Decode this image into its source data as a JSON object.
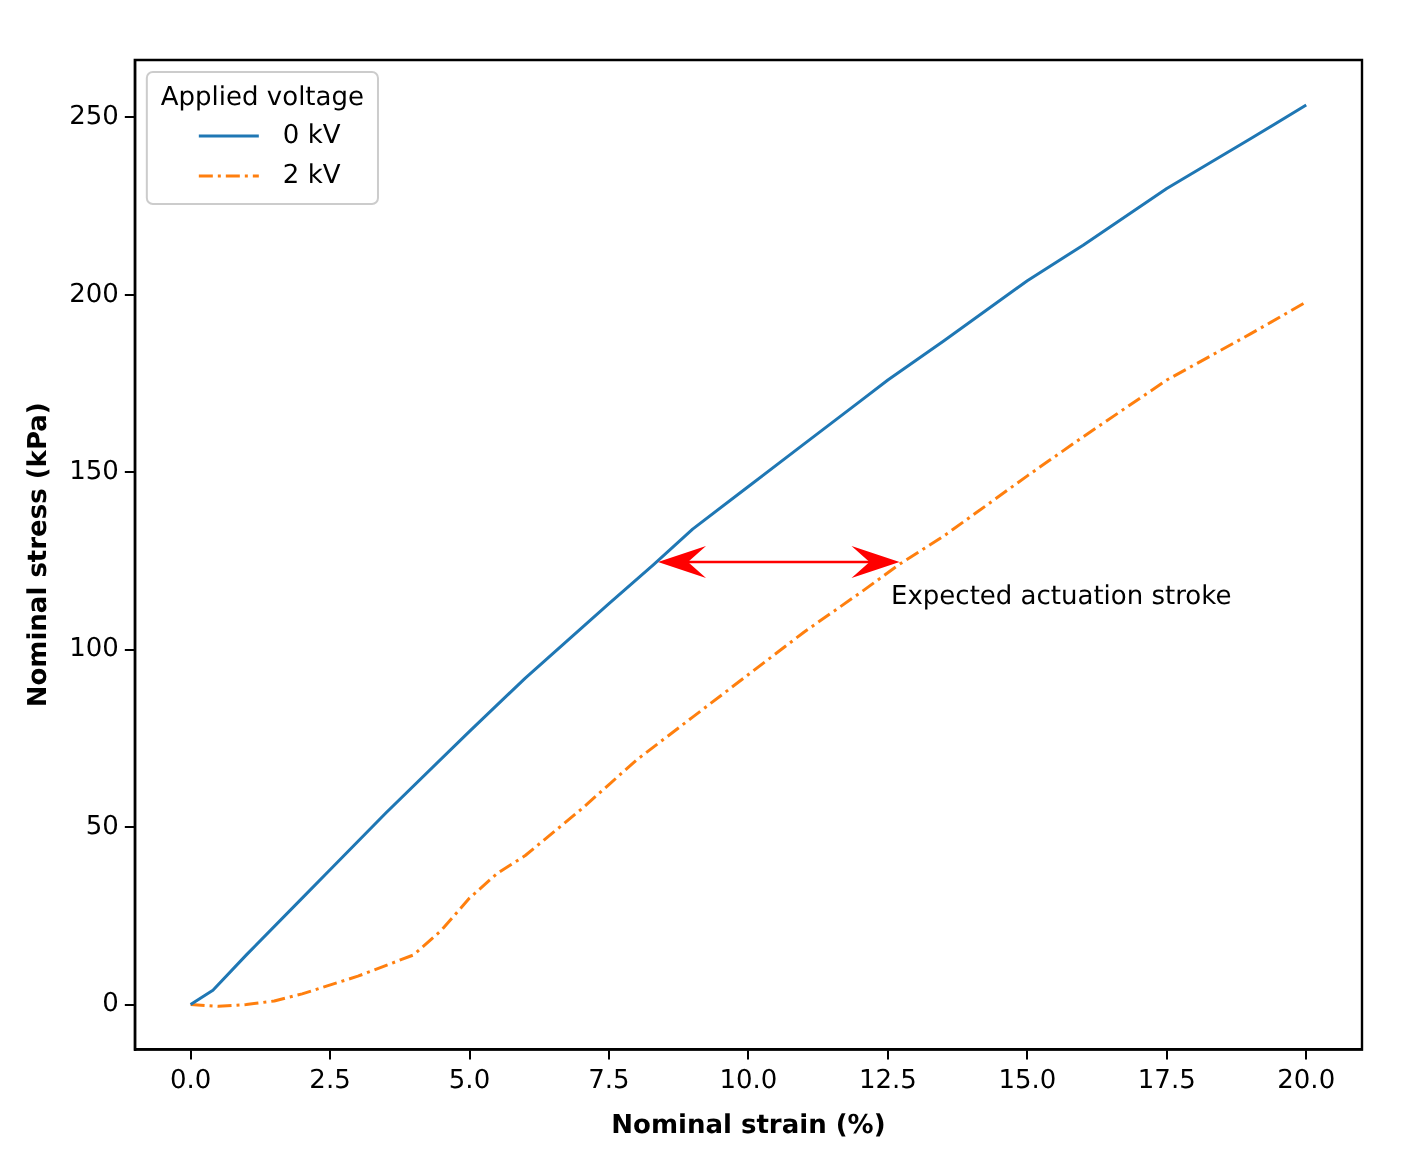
{
  "chart_data": {
    "type": "line",
    "xlabel": "Nominal strain (%)",
    "ylabel": "Nominal stress (kPa)",
    "legend_title": "Applied voltage",
    "legend": "top left",
    "grid": false,
    "marker": "none",
    "xlim": [
      -1,
      21
    ],
    "ylim": [
      -12.7,
      266.2
    ],
    "xticks": [
      {
        "value": 0,
        "label": "0.0"
      },
      {
        "value": 2.5,
        "label": "2.5"
      },
      {
        "value": 5,
        "label": "5.0"
      },
      {
        "value": 7.5,
        "label": "7.5"
      },
      {
        "value": 10,
        "label": "10.0"
      },
      {
        "value": 12.5,
        "label": "12.5"
      },
      {
        "value": 15,
        "label": "15.0"
      },
      {
        "value": 17.5,
        "label": "17.5"
      },
      {
        "value": 20,
        "label": "20.0"
      }
    ],
    "yticks": [
      0,
      50,
      100,
      150,
      200,
      250
    ],
    "series": [
      {
        "name": "0 kV",
        "color": "#1f77b4",
        "line_style": "solid",
        "x": [
          0,
          0.4,
          1,
          2,
          2.5,
          3.5,
          5,
          6,
          7.5,
          8.3,
          9,
          10,
          11,
          12,
          12.5,
          13.5,
          15,
          16,
          17.5,
          19,
          20
        ],
        "values": [
          0,
          4,
          14,
          30,
          38,
          54,
          77,
          92,
          113,
          124,
          134,
          146,
          158,
          170,
          176,
          187,
          204,
          214,
          230,
          244,
          253.5
        ]
      },
      {
        "name": "2 kV",
        "color": "#ff7f0e",
        "line_style": "dashed",
        "x": [
          0,
          0.5,
          1,
          1.5,
          2,
          3,
          4,
          4.5,
          5,
          5.5,
          6,
          7,
          7.5,
          8,
          9,
          10,
          11,
          12,
          12.7,
          13.5,
          15,
          16,
          17.5,
          19,
          20
        ],
        "values": [
          0,
          -0.5,
          0,
          1,
          3,
          8,
          14,
          21,
          30,
          37,
          42,
          55,
          62,
          69,
          81,
          93,
          105,
          116,
          124,
          132,
          149,
          160,
          176,
          189,
          198
        ]
      }
    ],
    "annotations": [
      {
        "text": "Expected actuation stroke",
        "x": 12.7,
        "y": 125
      }
    ]
  }
}
